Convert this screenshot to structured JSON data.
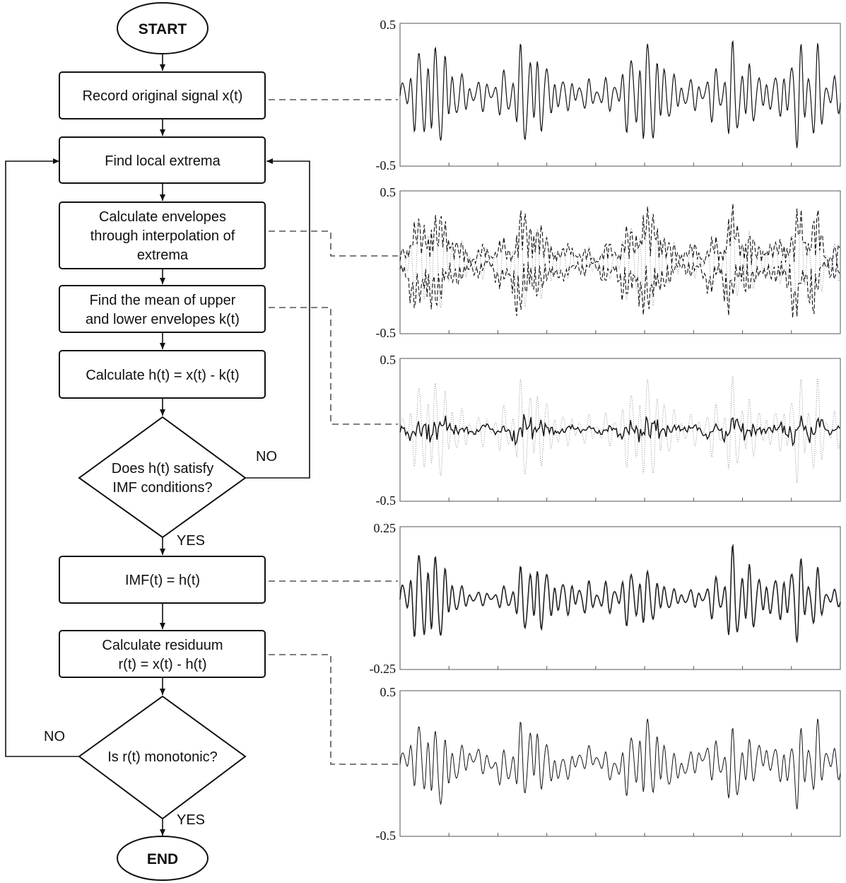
{
  "flowchart": {
    "start": "START",
    "end": "END",
    "steps": {
      "record": "Record original signal x(t)",
      "find_extrema": "Find local extrema",
      "envelopes": [
        "Calculate envelopes",
        "through interpolation of",
        "extrema"
      ],
      "mean": [
        "Find the mean of upper",
        "and lower envelopes k(t)"
      ],
      "calc_h": "Calculate h(t) = x(t) - k(t)",
      "imf_question": [
        "Does h(t) satisfy",
        "IMF conditions?"
      ],
      "imf": "IMF(t) = h(t)",
      "residuum": [
        "Calculate residuum",
        "r(t) = x(t) - h(t)"
      ],
      "monotonic_question": "Is r(t) monotonic?"
    },
    "branches": {
      "imf_no": "NO",
      "imf_yes": "YES",
      "mono_no": "NO",
      "mono_yes": "YES"
    }
  },
  "panels": [
    {
      "name": "original-signal",
      "y_top": "0.5",
      "y_bottom": "-0.5",
      "ylim": [
        -0.5,
        0.5
      ],
      "style": "solid-thin"
    },
    {
      "name": "envelopes",
      "y_top": "0.5",
      "y_bottom": "-0.5",
      "ylim": [
        -0.5,
        0.5
      ],
      "style": "envelopes"
    },
    {
      "name": "mean-envelope",
      "y_top": "0.5",
      "y_bottom": "-0.5",
      "ylim": [
        -0.5,
        0.5
      ],
      "style": "mean"
    },
    {
      "name": "imf",
      "y_top": "0.25",
      "y_bottom": "-0.25",
      "ylim": [
        -0.25,
        0.25
      ],
      "style": "imf"
    },
    {
      "name": "residuum",
      "y_top": "0.5",
      "y_bottom": "-0.5",
      "ylim": [
        -0.5,
        0.5
      ],
      "style": "solid-thin"
    }
  ]
}
